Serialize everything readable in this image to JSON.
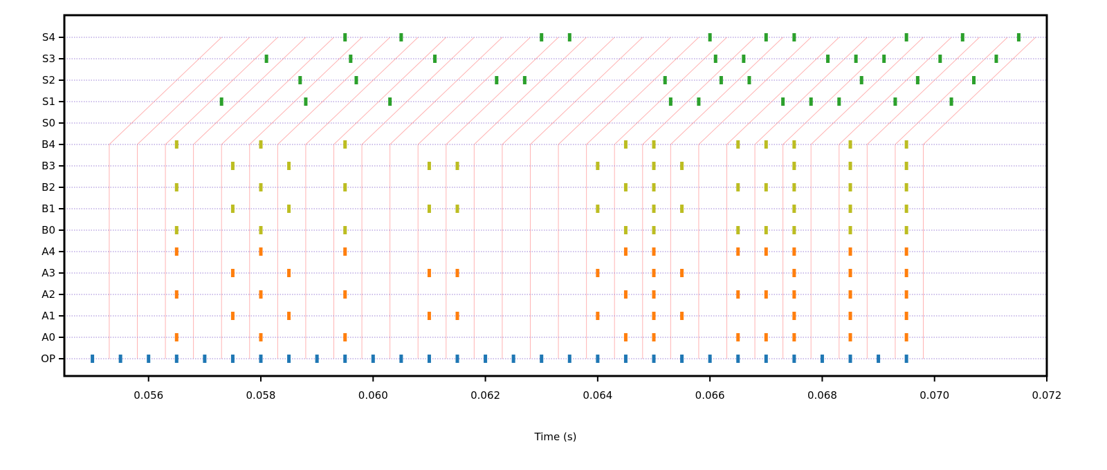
{
  "chart_data": {
    "type": "scatter",
    "title": "",
    "xlabel": "Time (s)",
    "ylabel": "",
    "xlim": [
      0.0545,
      0.072
    ],
    "x_ticks": [
      "0.056",
      "0.058",
      "0.060",
      "0.062",
      "0.064",
      "0.066",
      "0.068",
      "0.070",
      "0.072"
    ],
    "rows": [
      "OP",
      "A0",
      "A1",
      "A2",
      "A3",
      "A4",
      "B0",
      "B1",
      "B2",
      "B3",
      "B4",
      "S0",
      "S1",
      "S2",
      "S3",
      "S4"
    ],
    "grid": "dotted horizontal lines on every row",
    "colors": {
      "OP": "#1f77b4",
      "A": "#ff7f0e",
      "B": "#bcbd22",
      "S": "#2ca02c",
      "connector": "#ffb3b3",
      "row_grid": "#9b7fd6"
    },
    "series": [
      {
        "row": "OP",
        "x": [
          0.055,
          0.0555,
          0.056,
          0.0565,
          0.057,
          0.0575,
          0.058,
          0.0585,
          0.059,
          0.0595,
          0.06,
          0.0605,
          0.061,
          0.0615,
          0.062,
          0.0625,
          0.063,
          0.0635,
          0.064,
          0.0645,
          0.065,
          0.0655,
          0.066,
          0.0665,
          0.067,
          0.0675,
          0.068,
          0.0685,
          0.069,
          0.0695
        ]
      },
      {
        "row": "A0",
        "x": [
          0.0565,
          0.058,
          0.0595,
          0.0645,
          0.065,
          0.0665,
          0.067,
          0.0675,
          0.0685,
          0.0695
        ]
      },
      {
        "row": "A1",
        "x": [
          0.0575,
          0.0585,
          0.061,
          0.0615,
          0.064,
          0.065,
          0.0655,
          0.0675,
          0.0685,
          0.0695
        ]
      },
      {
        "row": "A2",
        "x": [
          0.0565,
          0.058,
          0.0595,
          0.0645,
          0.065,
          0.0665,
          0.067,
          0.0675,
          0.0685,
          0.0695
        ]
      },
      {
        "row": "A3",
        "x": [
          0.0575,
          0.0585,
          0.061,
          0.0615,
          0.064,
          0.065,
          0.0655,
          0.0675,
          0.0685,
          0.0695
        ]
      },
      {
        "row": "A4",
        "x": [
          0.0565,
          0.058,
          0.0595,
          0.0645,
          0.065,
          0.0665,
          0.067,
          0.0675,
          0.0685,
          0.0695
        ]
      },
      {
        "row": "B0",
        "x": [
          0.0565,
          0.058,
          0.0595,
          0.0645,
          0.065,
          0.0665,
          0.067,
          0.0675,
          0.0685,
          0.0695
        ]
      },
      {
        "row": "B1",
        "x": [
          0.0575,
          0.0585,
          0.061,
          0.0615,
          0.064,
          0.065,
          0.0655,
          0.0675,
          0.0685,
          0.0695
        ]
      },
      {
        "row": "B2",
        "x": [
          0.0565,
          0.058,
          0.0595,
          0.0645,
          0.065,
          0.0665,
          0.067,
          0.0675,
          0.0685,
          0.0695
        ]
      },
      {
        "row": "B3",
        "x": [
          0.0575,
          0.0585,
          0.061,
          0.0615,
          0.064,
          0.065,
          0.0655,
          0.0675,
          0.0685,
          0.0695
        ]
      },
      {
        "row": "B4",
        "x": [
          0.0565,
          0.058,
          0.0595,
          0.0645,
          0.065,
          0.0665,
          0.067,
          0.0675,
          0.0685,
          0.0695
        ]
      },
      {
        "row": "S0",
        "x": []
      },
      {
        "row": "S1",
        "x": [
          0.0573,
          0.0588,
          0.0603,
          0.0653,
          0.0658,
          0.0673,
          0.0678,
          0.0683,
          0.0693,
          0.0703
        ]
      },
      {
        "row": "S2",
        "x": [
          0.0587,
          0.0597,
          0.0622,
          0.0627,
          0.0652,
          0.0662,
          0.0667,
          0.0687,
          0.0697,
          0.0707
        ]
      },
      {
        "row": "S3",
        "x": [
          0.0581,
          0.0596,
          0.0611,
          0.0661,
          0.0666,
          0.0681,
          0.0686,
          0.0691,
          0.0701,
          0.0711
        ]
      },
      {
        "row": "S4",
        "x": [
          0.0595,
          0.0605,
          0.063,
          0.0635,
          0.066,
          0.067,
          0.0675,
          0.0695,
          0.0705,
          0.0715
        ]
      }
    ],
    "connectors": {
      "description": "light red guide lines rising vertically from the OP row to B4 and then diagonally up to S4, one every 0.0005 s",
      "start_times": [
        0.0553,
        0.0558,
        0.0563,
        0.0568,
        0.0573,
        0.0578,
        0.0583,
        0.0588,
        0.0593,
        0.0598,
        0.0603,
        0.0608,
        0.0613,
        0.0618,
        0.0623,
        0.0628,
        0.0633,
        0.0638,
        0.0643,
        0.0648,
        0.0653,
        0.0658,
        0.0663,
        0.0668,
        0.0673,
        0.0678,
        0.0683,
        0.0688,
        0.0693,
        0.0698
      ],
      "diagonal_time_span": 0.002
    }
  }
}
